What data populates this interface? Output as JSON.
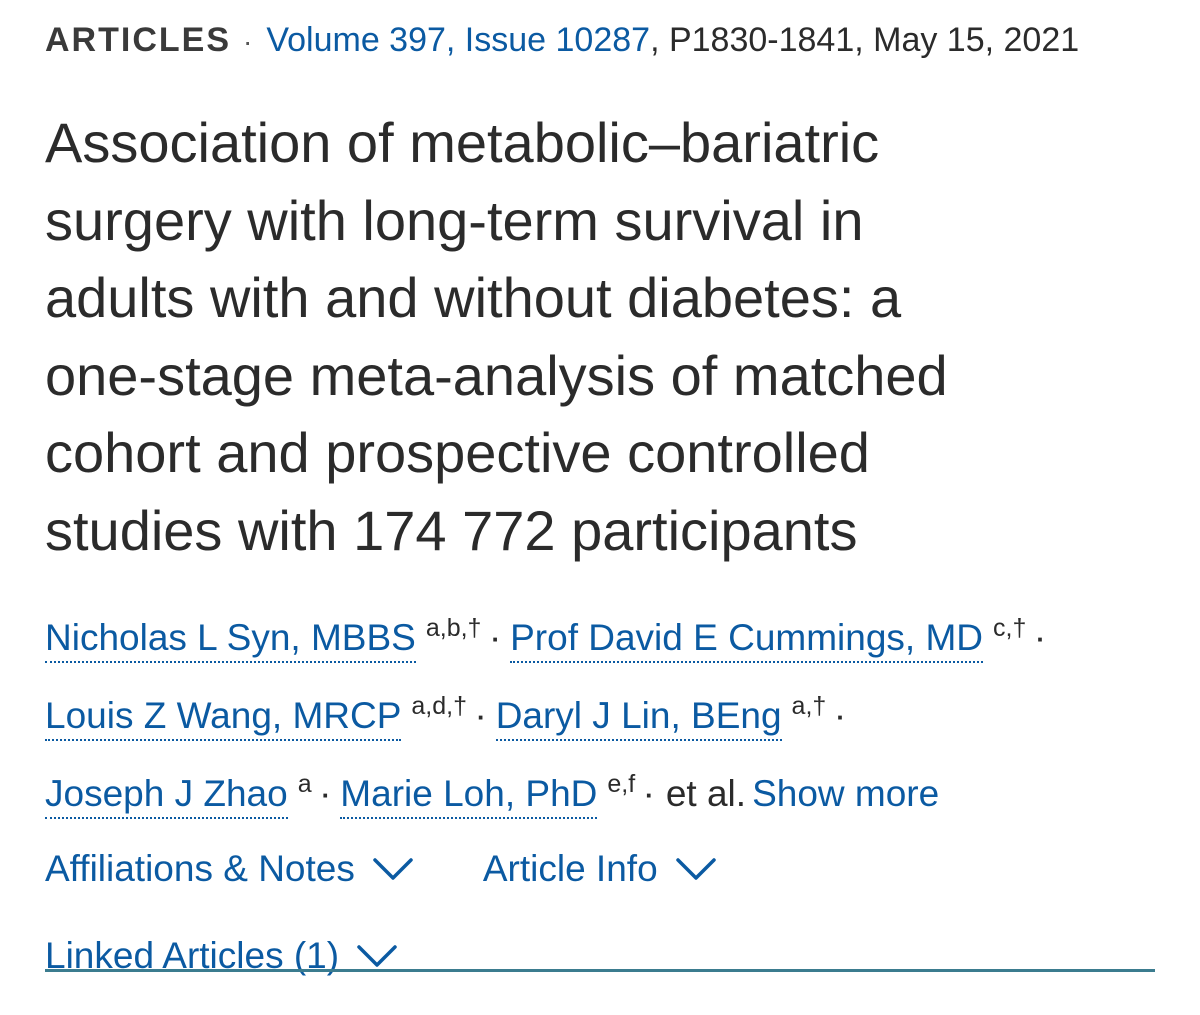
{
  "header": {
    "article_type": "ARTICLES",
    "separator": "·",
    "volume_issue": "Volume 397, Issue 10287",
    "pages_date": ", P1830-1841, May 15, 2021"
  },
  "title_lines": [
    "Association of metabolic–bariatric",
    "surgery with long-term survival in",
    "adults with and without diabetes: a",
    "one-stage meta-analysis of matched",
    "cohort and prospective controlled",
    "studies with 174 772 participants"
  ],
  "authors": [
    {
      "name": "Nicholas L Syn, MBBS",
      "affiliations": "a,b,†"
    },
    {
      "name": "Prof David E Cummings, MD",
      "affiliations": "c,†"
    },
    {
      "name": "Louis Z Wang, MRCP",
      "affiliations": "a,d,†"
    },
    {
      "name": "Daryl J Lin, BEng",
      "affiliations": "a,†"
    },
    {
      "name": "Joseph J Zhao",
      "affiliations": "a"
    },
    {
      "name": "Marie Loh, PhD",
      "affiliations": "e,f"
    }
  ],
  "author_separator": "·",
  "et_al": "et al.",
  "show_more": "Show more",
  "toggles": {
    "affiliations_notes": "Affiliations & Notes",
    "article_info": "Article Info",
    "linked_articles": "Linked Articles (1)"
  },
  "colors": {
    "link": "#0b5aa2",
    "text": "#2b2b2b",
    "divider": "#3b7c8f"
  },
  "icons": {
    "toggle_icon": "chevron-down-icon"
  }
}
